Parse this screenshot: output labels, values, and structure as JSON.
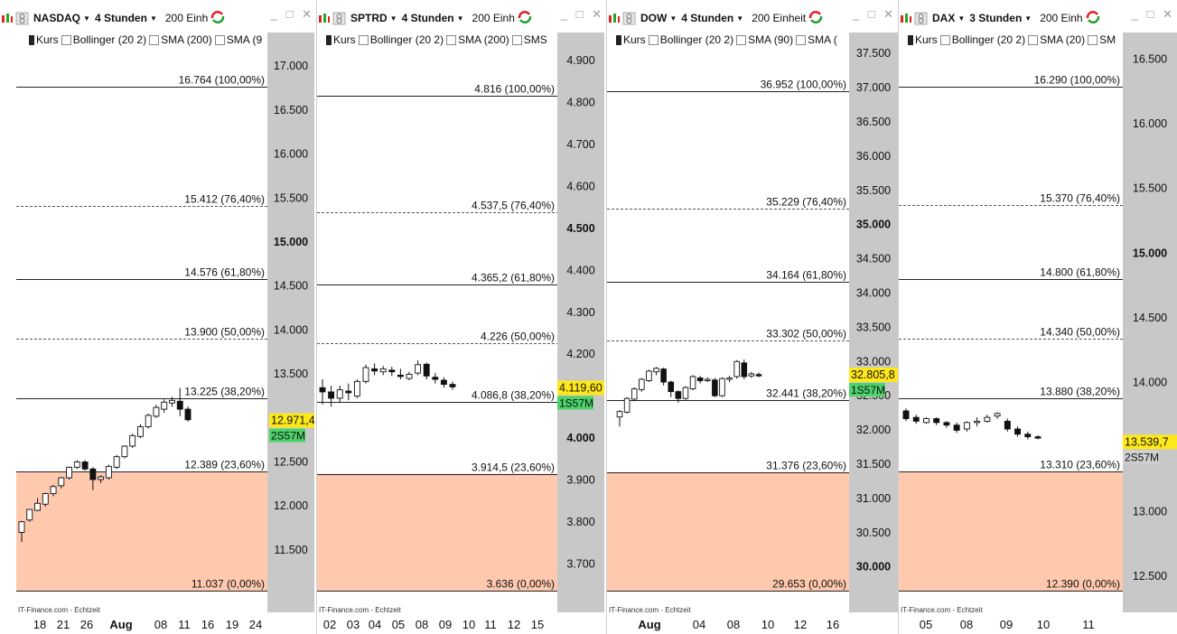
{
  "colors": {
    "zone": "#FFC9AE",
    "axis": "#C8C8C8",
    "price_tag": "#FFE81A",
    "badge": "#4CD26A",
    "badge_gray": "#D0D0D0"
  },
  "toolbar": {
    "window_controls": "_ □ ✕"
  },
  "panels": [
    {
      "symbol": "NASDAQ",
      "period": "4 Stunden",
      "units": "200 Einh",
      "options": [
        {
          "label": "Kurs",
          "checked": true
        },
        {
          "label": "Bollinger (20 2)",
          "checked": false
        },
        {
          "label": "SMA (200)",
          "checked": false
        },
        {
          "label": "SMA (9",
          "checked": false
        }
      ],
      "footer": "IT-Finance.com - Echtzeit",
      "price_label": "12.971,4",
      "badge": "2S57M",
      "badge_style": "green",
      "x_ticks": [
        {
          "label": "18"
        },
        {
          "label": "21"
        },
        {
          "label": "26"
        },
        {
          "label": "Aug",
          "bold": true
        },
        {
          "label": "08"
        },
        {
          "label": "11"
        },
        {
          "label": "16"
        },
        {
          "label": "19"
        },
        {
          "label": "24"
        }
      ],
      "y_ticks": [
        {
          "label": "17.000"
        },
        {
          "label": "16.500"
        },
        {
          "label": "16.000"
        },
        {
          "label": "15.500"
        },
        {
          "label": "15.000",
          "bold": true
        },
        {
          "label": "14.500"
        },
        {
          "label": "14.000"
        },
        {
          "label": "13.500"
        },
        {
          "label": "12.500"
        },
        {
          "label": "12.000"
        },
        {
          "label": "11.500"
        }
      ],
      "fib_levels": [
        {
          "label": "16.764 (100,00%)",
          "style": "solid"
        },
        {
          "label": "15.412 (76,40%)",
          "style": "dashed"
        },
        {
          "label": "14.576 (61,80%)",
          "style": "solid"
        },
        {
          "label": "13.900 (50,00%)",
          "style": "dashed"
        },
        {
          "label": "13.225 (38,20%)",
          "style": "solid"
        },
        {
          "label": "12.389 (23,60%)",
          "style": "solid"
        },
        {
          "label": "11.037 (0,00%)",
          "style": "solid"
        }
      ]
    },
    {
      "symbol": "SPTRD",
      "period": "4 Stunden",
      "units": "200 Einh",
      "options": [
        {
          "label": "Kurs",
          "checked": true
        },
        {
          "label": "Bollinger (20 2)",
          "checked": false
        },
        {
          "label": "SMA (200)",
          "checked": false
        },
        {
          "label": "SMS",
          "checked": false
        }
      ],
      "footer": "IT-Finance.com - Echtzeit",
      "price_label": "4.119,60",
      "badge": "1S57M",
      "badge_style": "green",
      "x_ticks": [
        {
          "label": "02"
        },
        {
          "label": "03"
        },
        {
          "label": "04"
        },
        {
          "label": "05"
        },
        {
          "label": "08"
        },
        {
          "label": "09"
        },
        {
          "label": "10"
        },
        {
          "label": "11"
        },
        {
          "label": "12"
        },
        {
          "label": "15"
        }
      ],
      "y_ticks": [
        {
          "label": "4.900"
        },
        {
          "label": "4.800"
        },
        {
          "label": "4.700"
        },
        {
          "label": "4.600"
        },
        {
          "label": "4.500",
          "bold": true
        },
        {
          "label": "4.400"
        },
        {
          "label": "4.300"
        },
        {
          "label": "4.200"
        },
        {
          "label": "4.000",
          "bold": true
        },
        {
          "label": "3.900"
        },
        {
          "label": "3.800"
        },
        {
          "label": "3.700"
        }
      ],
      "fib_levels": [
        {
          "label": "4.816 (100,00%)",
          "style": "solid"
        },
        {
          "label": "4.537,5 (76,40%)",
          "style": "dashed"
        },
        {
          "label": "4.365,2 (61,80%)",
          "style": "solid"
        },
        {
          "label": "4.226 (50,00%)",
          "style": "dashed"
        },
        {
          "label": "4.086,8 (38,20%)",
          "style": "solid"
        },
        {
          "label": "3.914,5 (23,60%)",
          "style": "solid"
        },
        {
          "label": "3.636 (0,00%)",
          "style": "solid"
        }
      ]
    },
    {
      "symbol": "DOW",
      "period": "4 Stunden",
      "units": "200 Einheit",
      "options": [
        {
          "label": "Kurs",
          "checked": true
        },
        {
          "label": "Bollinger (20 2)",
          "checked": false
        },
        {
          "label": "SMA (90)",
          "checked": false
        },
        {
          "label": "SMA (",
          "checked": false
        }
      ],
      "footer": "IT-Finance.com - Echtzeit",
      "price_label": "32.805,8",
      "badge": "1S57M",
      "badge_style": "green",
      "x_ticks": [
        {
          "label": "Aug",
          "bold": true
        },
        {
          "label": "04"
        },
        {
          "label": "08"
        },
        {
          "label": "10"
        },
        {
          "label": "12"
        },
        {
          "label": "16"
        }
      ],
      "y_ticks": [
        {
          "label": "37.500"
        },
        {
          "label": "37.000"
        },
        {
          "label": "36.500"
        },
        {
          "label": "36.000"
        },
        {
          "label": "35.500"
        },
        {
          "label": "35.000",
          "bold": true
        },
        {
          "label": "34.500"
        },
        {
          "label": "34.000"
        },
        {
          "label": "33.500"
        },
        {
          "label": "33.000"
        },
        {
          "label": "32.500"
        },
        {
          "label": "32.000"
        },
        {
          "label": "31.500"
        },
        {
          "label": "31.000"
        },
        {
          "label": "30.500"
        },
        {
          "label": "30.000",
          "bold": true
        }
      ],
      "fib_levels": [
        {
          "label": "36.952 (100,00%)",
          "style": "solid"
        },
        {
          "label": "35.229 (76,40%)",
          "style": "dashed"
        },
        {
          "label": "34.164 (61,80%)",
          "style": "solid"
        },
        {
          "label": "33.302 (50,00%)",
          "style": "dashed"
        },
        {
          "label": "32.441 (38,20%)",
          "style": "solid"
        },
        {
          "label": "31.376 (23,60%)",
          "style": "solid"
        },
        {
          "label": "29.653 (0,00%)",
          "style": "solid"
        }
      ]
    },
    {
      "symbol": "DAX",
      "period": "3 Stunden",
      "units": "200 Einh",
      "options": [
        {
          "label": "Kurs",
          "checked": true
        },
        {
          "label": "Bollinger (20 2)",
          "checked": false
        },
        {
          "label": "SMA (20)",
          "checked": false
        },
        {
          "label": "SM",
          "checked": false
        }
      ],
      "footer": "IT-Finance.com - Echtzeit",
      "price_label": "13.539,7",
      "badge": "2S57M",
      "badge_style": "gray",
      "x_ticks": [
        {
          "label": "05"
        },
        {
          "label": "08"
        },
        {
          "label": "09"
        },
        {
          "label": "10"
        },
        {
          "label": "11"
        }
      ],
      "y_ticks": [
        {
          "label": "16.500"
        },
        {
          "label": "16.000"
        },
        {
          "label": "15.500"
        },
        {
          "label": "15.000",
          "bold": true
        },
        {
          "label": "14.500"
        },
        {
          "label": "14.000"
        },
        {
          "label": "13.000"
        },
        {
          "label": "12.500"
        }
      ],
      "fib_levels": [
        {
          "label": "16.290 (100,00%)",
          "style": "solid"
        },
        {
          "label": "15.370 (76,40%)",
          "style": "dashed"
        },
        {
          "label": "14.800 (61,80%)",
          "style": "solid"
        },
        {
          "label": "14.340 (50,00%)",
          "style": "dashed"
        },
        {
          "label": "13.880 (38,20%)",
          "style": "solid"
        },
        {
          "label": "13.310 (23,60%)",
          "style": "solid"
        },
        {
          "label": "12.390 (0,00%)",
          "style": "solid"
        }
      ]
    }
  ],
  "chart_data": [
    {
      "type": "candlestick",
      "symbol": "NASDAQ",
      "period": "4 Stunden",
      "ylim": [
        11037,
        17300
      ],
      "yticks": [
        17000,
        16500,
        16000,
        15500,
        15000,
        14500,
        14000,
        13500,
        12500,
        12000,
        11500
      ],
      "fib": [
        16764,
        15412,
        14576,
        13900,
        13225,
        12389,
        11037
      ],
      "zone": [
        11037,
        12389
      ],
      "last_price": 12971.4,
      "candles": [
        [
          11700,
          11820,
          11590,
          11830
        ],
        [
          11840,
          11960,
          11820,
          11960
        ],
        [
          11950,
          12030,
          11940,
          12090
        ],
        [
          12020,
          12140,
          11990,
          12150
        ],
        [
          12140,
          12220,
          12110,
          12240
        ],
        [
          12230,
          12320,
          12200,
          12330
        ],
        [
          12320,
          12440,
          12300,
          12450
        ],
        [
          12440,
          12500,
          12420,
          12520
        ],
        [
          12500,
          12420,
          12400,
          12520
        ],
        [
          12420,
          12300,
          12180,
          12440
        ],
        [
          12300,
          12330,
          12260,
          12350
        ],
        [
          12320,
          12450,
          12300,
          12470
        ],
        [
          12440,
          12560,
          12420,
          12580
        ],
        [
          12560,
          12680,
          12540,
          12690
        ],
        [
          12680,
          12800,
          12660,
          12820
        ],
        [
          12790,
          12900,
          12770,
          12930
        ],
        [
          12900,
          13030,
          12880,
          13050
        ],
        [
          13020,
          13120,
          13000,
          13150
        ],
        [
          13100,
          13180,
          13060,
          13210
        ],
        [
          13170,
          13200,
          13130,
          13240
        ],
        [
          13190,
          13100,
          13020,
          13340
        ],
        [
          13100,
          12980,
          12960,
          13130
        ]
      ]
    },
    {
      "type": "candlestick",
      "symbol": "SPTRD",
      "period": "4 Stunden",
      "ylim": [
        3636,
        4950
      ],
      "yticks": [
        4900,
        4800,
        4700,
        4600,
        4500,
        4400,
        4300,
        4200,
        4000,
        3900,
        3800,
        3700
      ],
      "fib": [
        4816,
        4537.5,
        4365.2,
        4226,
        4086.8,
        3914.5,
        3636
      ],
      "zone": [
        3636,
        3914.5
      ],
      "last_price": 4119.6,
      "candles": [
        [
          4120,
          4110,
          4080,
          4140
        ],
        [
          4110,
          4095,
          4075,
          4125
        ],
        [
          4095,
          4115,
          4085,
          4125
        ],
        [
          4112,
          4108,
          4090,
          4130
        ],
        [
          4100,
          4135,
          4095,
          4140
        ],
        [
          4135,
          4168,
          4130,
          4175
        ],
        [
          4165,
          4160,
          4150,
          4178
        ],
        [
          4158,
          4165,
          4150,
          4172
        ],
        [
          4162,
          4158,
          4148,
          4170
        ],
        [
          4150,
          4148,
          4140,
          4165
        ],
        [
          4142,
          4152,
          4138,
          4158
        ],
        [
          4155,
          4175,
          4150,
          4185
        ],
        [
          4176,
          4148,
          4140,
          4180
        ],
        [
          4145,
          4140,
          4130,
          4155
        ],
        [
          4138,
          4128,
          4120,
          4145
        ],
        [
          4128,
          4122,
          4115,
          4135
        ]
      ]
    },
    {
      "type": "candlestick",
      "symbol": "DOW",
      "period": "4 Stunden",
      "ylim": [
        29653,
        37700
      ],
      "yticks": [
        37500,
        37000,
        36500,
        36000,
        35500,
        35000,
        34500,
        34000,
        33500,
        33000,
        32500,
        32000,
        31500,
        31000,
        30500,
        30000
      ],
      "fib": [
        36952,
        35229,
        34164,
        33302,
        32441,
        31376,
        29653
      ],
      "zone": [
        29653,
        31376
      ],
      "last_price": 32805.8,
      "candles": [
        [
          32190,
          32270,
          32050,
          32290
        ],
        [
          32260,
          32460,
          32240,
          32480
        ],
        [
          32450,
          32600,
          32420,
          32620
        ],
        [
          32590,
          32740,
          32560,
          32760
        ],
        [
          32720,
          32860,
          32700,
          32880
        ],
        [
          32850,
          32900,
          32800,
          32920
        ],
        [
          32890,
          32700,
          32650,
          32910
        ],
        [
          32700,
          32560,
          32480,
          32720
        ],
        [
          32560,
          32460,
          32400,
          32580
        ],
        [
          32460,
          32620,
          32440,
          32640
        ],
        [
          32600,
          32780,
          32580,
          32800
        ],
        [
          32760,
          32720,
          32680,
          32790
        ],
        [
          32720,
          32740,
          32700,
          32770
        ],
        [
          32730,
          32500,
          32480,
          32760
        ],
        [
          32500,
          32750,
          32480,
          32770
        ],
        [
          32740,
          32760,
          32700,
          32790
        ],
        [
          32780,
          33000,
          32750,
          33020
        ],
        [
          32980,
          32780,
          32740,
          33030
        ],
        [
          32790,
          32820,
          32760,
          32850
        ],
        [
          32810,
          32800,
          32770,
          32840
        ]
      ]
    },
    {
      "type": "candlestick",
      "symbol": "DAX",
      "period": "3 Stunden",
      "ylim": [
        12390,
        16650
      ],
      "yticks": [
        16500,
        16000,
        15500,
        15000,
        14500,
        14000,
        13000,
        12500
      ],
      "fib": [
        16290,
        15370,
        14800,
        14340,
        13880,
        13310,
        12390
      ],
      "zone": [
        12390,
        13310
      ],
      "last_price": 13539.7,
      "candles": [
        [
          13780,
          13720,
          13700,
          13800
        ],
        [
          13730,
          13700,
          13680,
          13750
        ],
        [
          13690,
          13720,
          13680,
          13730
        ],
        [
          13720,
          13690,
          13670,
          13730
        ],
        [
          13690,
          13670,
          13650,
          13700
        ],
        [
          13670,
          13630,
          13610,
          13690
        ],
        [
          13640,
          13690,
          13620,
          13700
        ],
        [
          13690,
          13700,
          13660,
          13730
        ],
        [
          13700,
          13730,
          13690,
          13750
        ],
        [
          13740,
          13760,
          13720,
          13770
        ],
        [
          13700,
          13640,
          13620,
          13720
        ],
        [
          13640,
          13600,
          13580,
          13660
        ],
        [
          13600,
          13580,
          13560,
          13620
        ],
        [
          13580,
          13570,
          13560,
          13590
        ]
      ]
    }
  ]
}
